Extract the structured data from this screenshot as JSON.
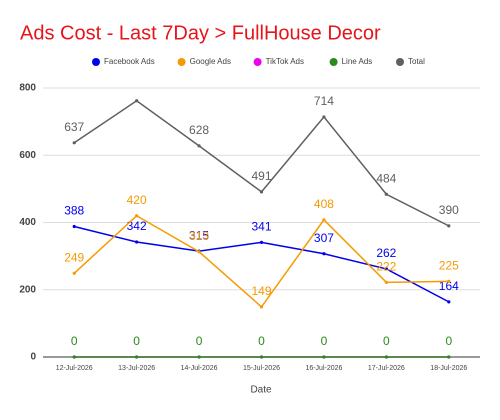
{
  "chart_data": {
    "type": "line",
    "title": "Ads Cost - Last 7Day > FullHouse Decor",
    "title_color": "#e8141b",
    "x_label": "Date",
    "categories": [
      "12-Jul-2026",
      "13-Jul-2026",
      "14-Jul-2026",
      "15-Jul-2026",
      "16-Jul-2026",
      "17-Jul-2026",
      "18-Jul-2026"
    ],
    "series": [
      {
        "name": "Facebook Ads",
        "color": "#0000ee",
        "values": [
          388,
          342,
          315,
          341,
          307,
          262,
          164
        ]
      },
      {
        "name": "Google Ads",
        "color": "#f59a00",
        "values": [
          249,
          420,
          313,
          149,
          408,
          222,
          225
        ]
      },
      {
        "name": "TikTok Ads",
        "color": "#ee00ee",
        "values": [
          0,
          0,
          0,
          0,
          0,
          0,
          0
        ],
        "data_labels": false
      },
      {
        "name": "Line Ads",
        "color": "#2a8a1a",
        "values": [
          0,
          0,
          0,
          0,
          0,
          0,
          0
        ]
      },
      {
        "name": "Total",
        "color": "#5f5f5f",
        "values": [
          637,
          762,
          628,
          491,
          714,
          484,
          390
        ],
        "value_labels": [
          "637",
          null,
          "628",
          "491",
          "714",
          "484",
          "390"
        ]
      }
    ],
    "ylim": [
      0,
      800
    ],
    "yticks": [
      0,
      200,
      400,
      600,
      800
    ],
    "grid": true
  }
}
